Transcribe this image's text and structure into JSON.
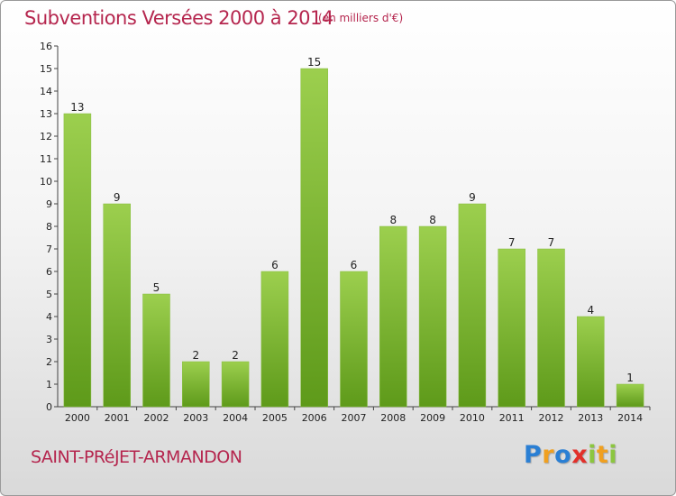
{
  "header": {
    "title": "Subventions Versées 2000 à 2014",
    "subtitle": "(en milliers d'€)"
  },
  "footer": {
    "commune": "SAINT-PRéJET-ARMANDON"
  },
  "logo": {
    "text": "Proxiti",
    "letters": [
      {
        "char": "P",
        "color": "#2a7fd4"
      },
      {
        "char": "r",
        "color": "#f0a020"
      },
      {
        "char": "o",
        "color": "#2a7fd4"
      },
      {
        "char": "x",
        "color": "#e2302a"
      },
      {
        "char": "i",
        "color": "#8cc63f"
      },
      {
        "char": "t",
        "color": "#f0a020"
      },
      {
        "char": "i",
        "color": "#8cc63f"
      }
    ]
  },
  "colors": {
    "accent": "#b5264e",
    "bar_light": "#9ccf4e",
    "bar_dark": "#5e9a1a"
  },
  "chart_data": {
    "type": "bar",
    "categories": [
      "2000",
      "2001",
      "2002",
      "2003",
      "2004",
      "2005",
      "2006",
      "2007",
      "2008",
      "2009",
      "2010",
      "2011",
      "2012",
      "2013",
      "2014"
    ],
    "values": [
      13,
      9,
      5,
      2,
      2,
      6,
      15,
      6,
      8,
      8,
      9,
      7,
      7,
      4,
      1
    ],
    "title": "Subventions Versées 2000 à 2014",
    "ylim": [
      0,
      16
    ],
    "yticks": [
      "0",
      "1",
      "2",
      "3",
      "4",
      "5",
      "6",
      "7",
      "8",
      "9",
      "10",
      "11",
      "12",
      "13",
      "14",
      "15",
      "16"
    ],
    "grid": false,
    "data_labels": true
  }
}
